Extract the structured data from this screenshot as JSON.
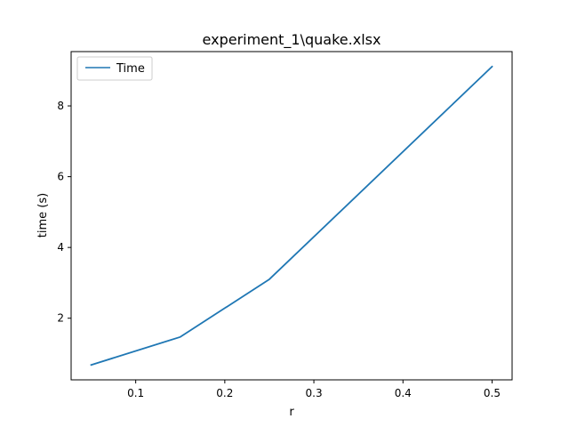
{
  "chart_data": {
    "type": "line",
    "title": "experiment_1\\quake.xlsx",
    "xlabel": "r",
    "ylabel": "time (s)",
    "xlim": [
      0.0275,
      0.5225
    ],
    "ylim": [
      0.2583,
      9.5347
    ],
    "xticks": [
      0.1,
      0.2,
      0.3,
      0.4,
      0.5
    ],
    "xtick_labels": [
      "0.1",
      "0.2",
      "0.3",
      "0.4",
      "0.5"
    ],
    "yticks": [
      2,
      4,
      6,
      8
    ],
    "ytick_labels": [
      "2",
      "4",
      "6",
      "8"
    ],
    "grid": false,
    "legend_position": "top-left",
    "series": [
      {
        "name": "Time",
        "color": "#1f77b4",
        "x": [
          0.05,
          0.15,
          0.25,
          0.5
        ],
        "y": [
          0.68,
          1.47,
          3.1,
          9.11
        ]
      }
    ]
  }
}
